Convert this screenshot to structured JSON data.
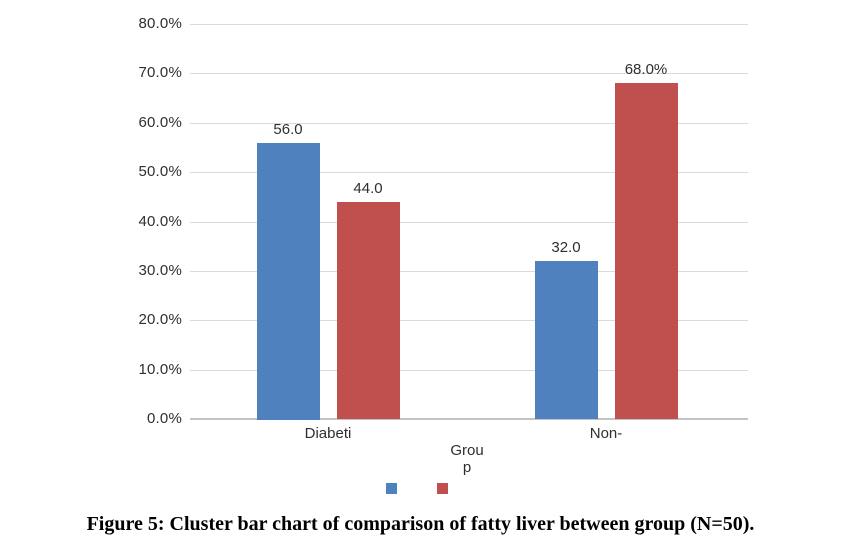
{
  "figure_caption": "Figure 5: Cluster bar chart of comparison of fatty liver between group (N=50).",
  "chart_data": {
    "type": "bar",
    "title": "",
    "categories": [
      "Diabeti",
      "Non-"
    ],
    "series": [
      {
        "name": "blue",
        "color": "#4e81bd",
        "values": [
          56.0,
          32.0
        ],
        "data_labels": [
          "56.0",
          "32.0"
        ]
      },
      {
        "name": "red",
        "color": "#c0504d",
        "values": [
          44.0,
          68.0
        ],
        "data_labels": [
          "44.0",
          "68.0%"
        ]
      }
    ],
    "xlabel": "Group",
    "xlabel_display_lines": [
      "Grou",
      "p"
    ],
    "ylabel": "",
    "ylim": [
      0,
      80
    ],
    "ytick_values": [
      80,
      70,
      60,
      50,
      40,
      30,
      20,
      10,
      0
    ],
    "ytick_labels": [
      "80.0%",
      "70.0%",
      "60.0%",
      "50.0%",
      "40.0%",
      "30.0%",
      "20.0%",
      "10.0%",
      "0.0%"
    ],
    "grid": true,
    "legend_position": "bottom",
    "legend_has_text": false
  },
  "colors": {
    "gridline": "#dadada",
    "axis_line": "#c3c3c3",
    "chart_text": "#2f2f2f",
    "series_blue": "#4e81bd",
    "series_red": "#c0504d"
  }
}
